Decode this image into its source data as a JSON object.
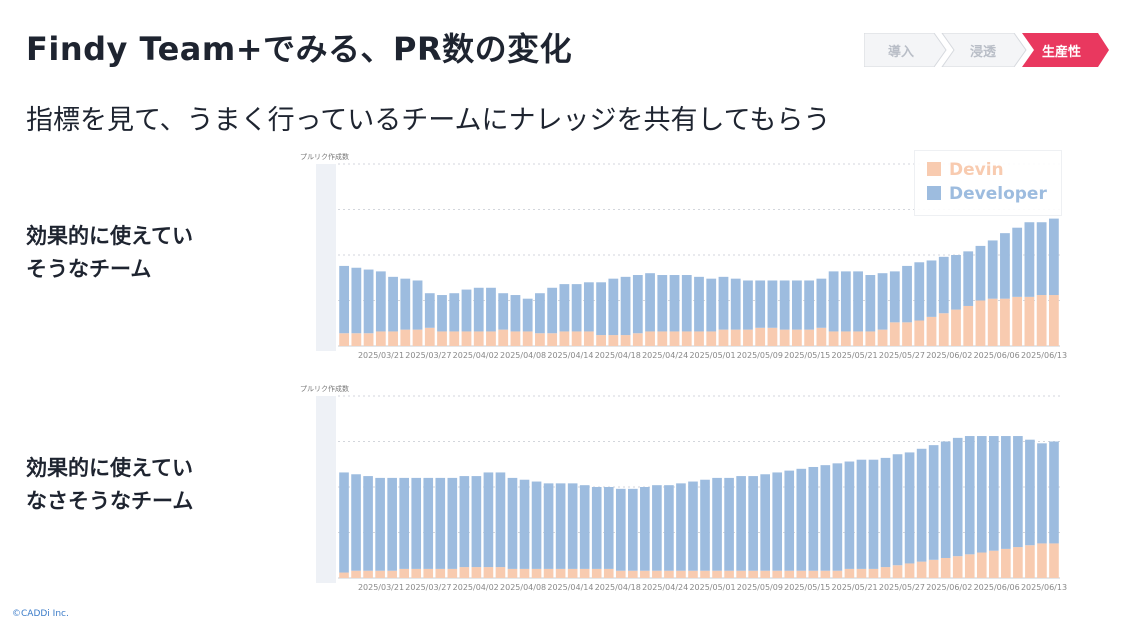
{
  "slide": {
    "title": "Findy Team+でみる、PR数の変化",
    "subtitle": "指標を見て、うまく行っているチームにナレッジを共有してもらう",
    "copyright": "©CADDi Inc."
  },
  "steps": [
    {
      "label": "導入",
      "active": false
    },
    {
      "label": "浸透",
      "active": false
    },
    {
      "label": "生産性",
      "active": true
    }
  ],
  "sections": [
    {
      "lines": [
        "効果的に使えてい",
        "そうなチーム"
      ]
    },
    {
      "lines": [
        "効果的に使えてい",
        "なさそうなチーム"
      ]
    }
  ],
  "legend": {
    "items": [
      {
        "label": "Devin",
        "color": "#f8cbb0"
      },
      {
        "label": "Developer",
        "color": "#9dbcdf"
      }
    ]
  },
  "chart_data": [
    {
      "type": "bar",
      "stacked": true,
      "ylabel": "プルリク作成数",
      "tick_labels": [
        "2025/03/21",
        "2025/03/27",
        "2025/04/02",
        "2025/04/08",
        "2025/04/14",
        "2025/04/18",
        "2025/04/24",
        "2025/05/01",
        "2025/05/09",
        "2025/05/15",
        "2025/05/21",
        "2025/05/27",
        "2025/06/02",
        "2025/06/06",
        "2025/06/13"
      ],
      "ylim": [
        0,
        100
      ],
      "grid": true,
      "series": [
        {
          "name": "Devin",
          "color": "#f8cbb0",
          "values": [
            7,
            7,
            7,
            8,
            8,
            9,
            9,
            10,
            8,
            8,
            8,
            8,
            8,
            9,
            8,
            8,
            7,
            7,
            8,
            8,
            8,
            6,
            6,
            6,
            7,
            8,
            8,
            8,
            8,
            8,
            8,
            9,
            9,
            9,
            10,
            10,
            9,
            9,
            9,
            10,
            8,
            8,
            8,
            8,
            9,
            13,
            13,
            14,
            16,
            18,
            20,
            22,
            25,
            26,
            26,
            27,
            27,
            28,
            28
          ]
        },
        {
          "name": "Developer",
          "color": "#9dbcdf",
          "values": [
            37,
            36,
            35,
            33,
            30,
            28,
            27,
            19,
            20,
            21,
            23,
            24,
            24,
            20,
            20,
            18,
            22,
            25,
            26,
            26,
            27,
            29,
            31,
            32,
            32,
            32,
            31,
            31,
            31,
            30,
            29,
            29,
            28,
            27,
            26,
            26,
            27,
            27,
            27,
            27,
            33,
            33,
            33,
            31,
            31,
            28,
            31,
            32,
            31,
            31,
            30,
            30,
            30,
            32,
            36,
            38,
            41,
            40,
            42
          ]
        }
      ]
    },
    {
      "type": "bar",
      "stacked": true,
      "ylabel": "プルリク作成数",
      "tick_labels": [
        "2025/03/21",
        "2025/03/27",
        "2025/04/02",
        "2025/04/08",
        "2025/04/14",
        "2025/04/18",
        "2025/04/24",
        "2025/05/01",
        "2025/05/09",
        "2025/05/15",
        "2025/05/21",
        "2025/05/27",
        "2025/06/02",
        "2025/06/06",
        "2025/06/13"
      ],
      "ylim": [
        0,
        100
      ],
      "grid": true,
      "series": [
        {
          "name": "Devin",
          "color": "#f8cbb0",
          "values": [
            3,
            4,
            4,
            4,
            4,
            5,
            5,
            5,
            5,
            5,
            6,
            6,
            6,
            6,
            5,
            5,
            5,
            5,
            5,
            5,
            5,
            5,
            5,
            4,
            4,
            4,
            4,
            4,
            4,
            4,
            4,
            4,
            4,
            4,
            4,
            4,
            4,
            4,
            4,
            4,
            4,
            4,
            5,
            5,
            5,
            6,
            7,
            8,
            9,
            10,
            11,
            12,
            13,
            14,
            15,
            16,
            17,
            18,
            19,
            19
          ]
        },
        {
          "name": "Developer",
          "color": "#9dbcdf",
          "values": [
            55,
            53,
            52,
            51,
            51,
            50,
            50,
            50,
            50,
            50,
            50,
            50,
            52,
            52,
            50,
            49,
            48,
            47,
            47,
            47,
            46,
            45,
            45,
            45,
            45,
            46,
            47,
            47,
            48,
            49,
            50,
            51,
            51,
            52,
            52,
            53,
            54,
            55,
            56,
            57,
            58,
            59,
            59,
            60,
            60,
            60,
            61,
            61,
            62,
            63,
            64,
            65,
            65,
            64,
            63,
            62,
            61,
            58,
            55,
            56
          ]
        }
      ]
    }
  ]
}
